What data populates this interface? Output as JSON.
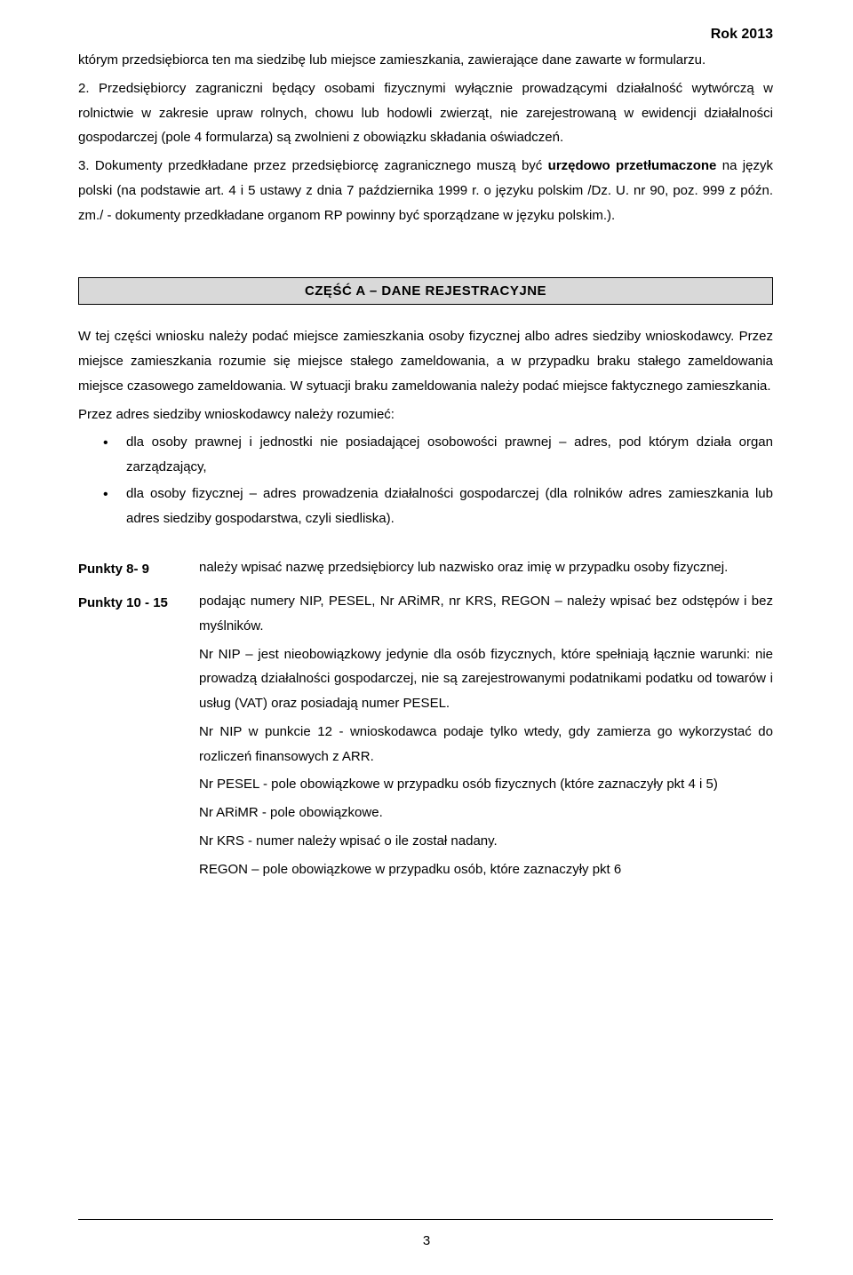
{
  "header_year": "Rok 2013",
  "para1_a": "którym przedsiębiorca ten ma siedzibę lub miejsce zamieszkania, zawierające dane zawarte w formularzu.",
  "para2_a": "2. Przedsiębiorcy zagraniczni będący osobami fizycznymi wyłącznie prowadzącymi działalność wytwórczą w rolnictwie w zakresie upraw rolnych, chowu lub hodowli zwierząt, nie zarejestrowaną w ewidencji działalności gospodarczej (pole 4 formularza) są zwolnieni z obowiązku składania oświadczeń.",
  "para3_prefix": "3. Dokumenty przedkładane przez przedsiębiorcę zagranicznego muszą być ",
  "para3_bold1": "urzędowo przetłumaczone",
  "para3_after1": " na język polski (na podstawie art. 4 i 5 ustawy z dnia 7 października 1999 r. o języku polskim /Dz. U. nr 90, poz. 999 z późn. zm./ - dokumenty przedkładane organom RP powinny być sporządzane w języku polskim.).",
  "section_title": "CZĘŚĆ A – DANE REJESTRACYJNE",
  "paraA": "W tej części wniosku należy podać miejsce zamieszkania osoby fizycznej albo adres siedziby wnioskodawcy. Przez miejsce zamieszkania rozumie się miejsce stałego zameldowania, a w przypadku braku stałego zameldowania miejsce czasowego zameldowania. W sytuacji braku zameldowania należy podać miejsce faktycznego zamieszkania.",
  "paraB": "Przez adres siedziby wnioskodawcy należy rozumieć:",
  "bullet1": "dla osoby prawnej i jednostki nie posiadającej osobowości prawnej – adres, pod którym działa organ zarządzający,",
  "bullet2": "dla osoby fizycznej – adres prowadzenia działalności gospodarczej (dla rolników adres zamieszkania lub adres siedziby gospodarstwa, czyli siedliska).",
  "pt89_label": "Punkty 8- 9",
  "pt89_text": "należy wpisać nazwę przedsiębiorcy lub nazwisko oraz imię w przypadku osoby fizycznej.",
  "pt1015_label": "Punkty 10 - 15",
  "pt1015_p1": "podając numery NIP, PESEL,  Nr ARiMR, nr KRS, REGON – należy wpisać bez odstępów i bez myślników.",
  "pt1015_p2": "Nr NIP – jest nieobowiązkowy jedynie dla osób fizycznych, które spełniają łącznie warunki: nie prowadzą działalności gospodarczej, nie są zarejestrowanymi podatnikami podatku od towarów i usług (VAT) oraz posiadają numer PESEL.",
  "pt1015_p3": "Nr NIP w punkcie 12 - wnioskodawca podaje tylko wtedy, gdy zamierza go wykorzystać do rozliczeń finansowych z ARR.",
  "pt1015_p4": "Nr PESEL - pole obowiązkowe w przypadku osób fizycznych (które zaznaczyły pkt 4 i 5)",
  "pt1015_p5": "Nr ARiMR - pole obowiązkowe.",
  "pt1015_p6": "Nr KRS - numer należy wpisać o ile został nadany.",
  "pt1015_p7": "REGON – pole obowiązkowe w przypadku osób, które zaznaczyły pkt 6",
  "page_number": "3"
}
